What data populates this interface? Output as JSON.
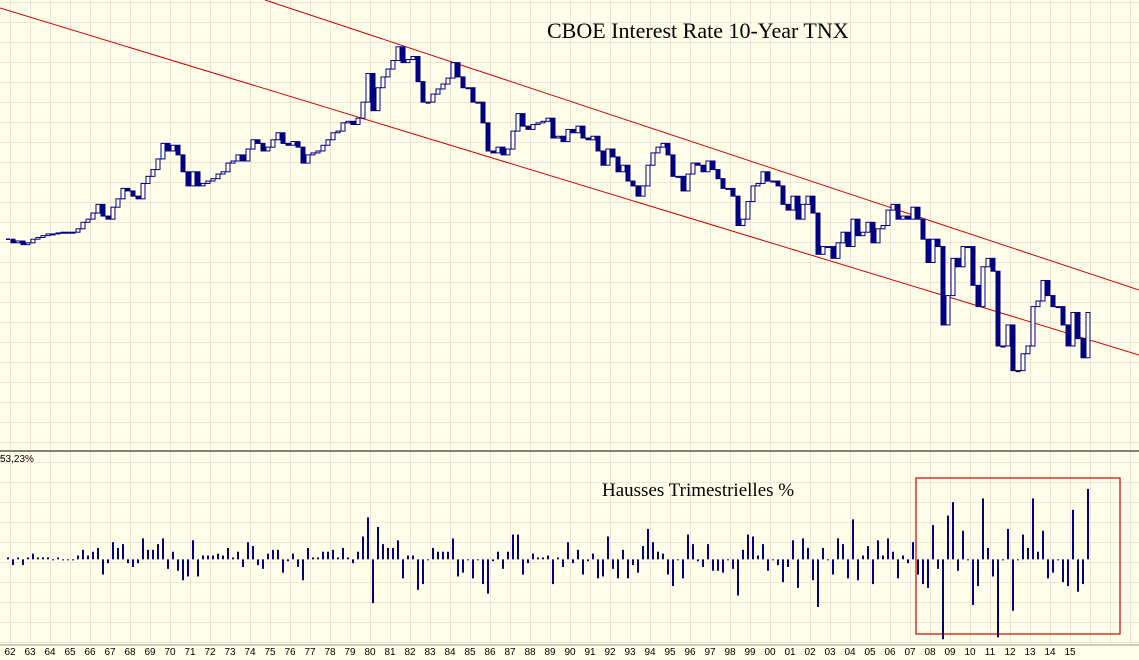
{
  "chart_data": [
    {
      "type": "candlestick",
      "title": "CBOE Interest Rate 10-Year TNX",
      "color": "#000080",
      "up_color": "#ffffff",
      "log_scale": true,
      "ylim": [
        0.92,
        21.2
      ],
      "values": [
        4.0,
        3.9,
        3.95,
        3.85,
        3.9,
        4.0,
        4.05,
        4.1,
        4.15,
        4.15,
        4.18,
        4.2,
        4.2,
        4.2,
        4.3,
        4.5,
        4.6,
        4.8,
        5.1,
        4.7,
        4.6,
        5.0,
        5.3,
        5.7,
        5.6,
        5.4,
        5.3,
        5.9,
        6.2,
        6.5,
        7.0,
        7.8,
        7.4,
        7.7,
        7.2,
        6.4,
        5.8,
        6.4,
        5.8,
        5.9,
        6.0,
        6.1,
        6.3,
        6.4,
        6.8,
        6.9,
        7.2,
        6.9,
        7.5,
        8.0,
        7.8,
        7.4,
        7.6,
        8.0,
        8.4,
        7.8,
        7.7,
        7.9,
        7.6,
        6.8,
        7.2,
        7.3,
        7.4,
        7.7,
        8.0,
        8.4,
        8.5,
        9.0,
        9.1,
        8.9,
        9.3,
        10.4,
        12.7,
        9.8,
        11.5,
        12.4,
        13.1,
        13.9,
        15.3,
        13.7,
        14.0,
        14.3,
        12.0,
        10.4,
        10.4,
        11.0,
        11.4,
        11.8,
        12.3,
        13.7,
        12.4,
        11.5,
        11.5,
        10.4,
        10.4,
        9.0,
        7.4,
        7.3,
        7.6,
        7.2,
        7.5,
        8.5,
        9.6,
        8.8,
        8.6,
        8.9,
        9.0,
        9.1,
        9.3,
        8.1,
        8.2,
        7.9,
        8.6,
        8.4,
        8.8,
        8.1,
        8.0,
        8.2,
        7.4,
        6.7,
        7.5,
        7.1,
        6.4,
        6.7,
        6.0,
        5.8,
        5.4,
        5.8,
        6.7,
        7.3,
        7.6,
        7.8,
        7.2,
        6.2,
        6.2,
        5.6,
        6.3,
        6.8,
        6.7,
        6.4,
        6.9,
        6.5,
        6.1,
        5.7,
        5.7,
        5.4,
        4.4,
        4.6,
        5.2,
        5.8,
        5.9,
        6.4,
        6.0,
        6.0,
        5.8,
        5.1,
        4.9,
        5.4,
        4.6,
        5.1,
        5.4,
        4.8,
        3.6,
        3.8,
        3.8,
        3.5,
        3.9,
        4.2,
        3.8,
        4.6,
        4.1,
        4.2,
        4.5,
        3.9,
        4.3,
        4.4,
        4.9,
        5.1,
        4.6,
        4.7,
        4.6,
        5.0,
        4.6,
        4.0,
        3.4,
        4.0,
        3.8,
        2.2,
        2.7,
        3.5,
        3.3,
        3.8,
        3.8,
        2.9,
        2.5,
        3.3,
        3.5,
        3.2,
        1.9,
        1.9,
        2.2,
        1.6,
        1.6,
        1.8,
        1.9,
        2.5,
        2.6,
        3.0,
        2.7,
        2.5,
        2.5,
        2.2,
        1.9,
        2.4,
        2.0,
        1.75,
        2.4
      ]
    },
    {
      "type": "bar",
      "title": "Hausses Trimestrielles %",
      "color": "#000080",
      "ylim": [
        -45,
        53.23
      ],
      "yticks": [
        {
          "value": 53.23,
          "label": "53,23%"
        }
      ],
      "categories": [
        "62",
        null,
        null,
        null,
        "63",
        null,
        null,
        null,
        "64",
        null,
        null,
        null,
        "65",
        null,
        null,
        null,
        "66",
        null,
        null,
        null,
        "67",
        null,
        null,
        null,
        "68",
        null,
        null,
        null,
        "69",
        null,
        null,
        null,
        "70",
        null,
        null,
        null,
        "71",
        null,
        null,
        null,
        "72",
        null,
        null,
        null,
        "73",
        null,
        null,
        null,
        "74",
        null,
        null,
        null,
        "75",
        null,
        null,
        null,
        "76",
        null,
        null,
        null,
        "77",
        null,
        null,
        null,
        "78",
        null,
        null,
        null,
        "79",
        null,
        null,
        null,
        "80",
        null,
        null,
        null,
        "81",
        null,
        null,
        null,
        "82",
        null,
        null,
        null,
        "83",
        null,
        null,
        null,
        "84",
        null,
        null,
        null,
        "85",
        null,
        null,
        null,
        "86",
        null,
        null,
        null,
        "87",
        null,
        null,
        null,
        "88",
        null,
        null,
        null,
        "89",
        null,
        null,
        null,
        "90",
        null,
        null,
        null,
        "91",
        null,
        null,
        null,
        "92",
        null,
        null,
        null,
        "93",
        null,
        null,
        null,
        "94",
        null,
        null,
        null,
        "95",
        null,
        null,
        null,
        "96",
        null,
        null,
        null,
        "97",
        null,
        null,
        null,
        "98",
        null,
        null,
        null,
        "99",
        null,
        null,
        null,
        "00",
        null,
        null,
        null,
        "01",
        null,
        null,
        null,
        "02",
        null,
        null,
        null,
        "03",
        null,
        null,
        null,
        "04",
        null,
        null,
        null,
        "05",
        null,
        null,
        null,
        "06",
        null,
        null,
        null,
        "07",
        null,
        null,
        null,
        "08",
        null,
        null,
        null,
        "09",
        null,
        null,
        null,
        "10",
        null,
        null,
        null,
        "11",
        null,
        null,
        null,
        "12",
        null,
        null,
        null,
        "13",
        null,
        null,
        null,
        "14",
        null,
        null,
        null,
        "15",
        null,
        null,
        null,
        null
      ],
      "values": [
        1,
        -3,
        1,
        -3,
        1,
        3,
        1,
        1,
        1,
        0,
        1,
        0,
        0,
        0,
        2,
        5,
        2,
        4,
        6,
        -8,
        -2,
        9,
        6,
        8,
        -2,
        -4,
        -2,
        11,
        5,
        5,
        8,
        11,
        -5,
        4,
        -6,
        -11,
        -9,
        10,
        -9,
        2,
        2,
        2,
        3,
        2,
        6,
        1,
        4,
        -4,
        9,
        7,
        -3,
        -5,
        3,
        5,
        5,
        -7,
        -1,
        3,
        -4,
        -11,
        6,
        1,
        1,
        4,
        4,
        5,
        1,
        6,
        1,
        -2,
        4,
        12,
        22,
        -23,
        17,
        8,
        6,
        6,
        10,
        -10,
        2,
        2,
        -16,
        -13,
        0,
        6,
        4,
        4,
        4,
        11,
        -9,
        -7,
        0,
        -10,
        0,
        -13,
        -18,
        -1,
        4,
        -5,
        4,
        13,
        13,
        -8,
        -2,
        3,
        1,
        1,
        2,
        -13,
        1,
        -4,
        9,
        -2,
        5,
        -8,
        -1,
        3,
        -10,
        -9,
        12,
        -5,
        -10,
        5,
        -10,
        -3,
        -7,
        7,
        16,
        9,
        4,
        3,
        -8,
        -14,
        0,
        -10,
        13,
        8,
        -1,
        -4,
        8,
        -6,
        -6,
        -7,
        0,
        -5,
        -19,
        5,
        13,
        12,
        2,
        8,
        -6,
        0,
        -3,
        -12,
        -4,
        10,
        -15,
        11,
        6,
        -11,
        -25,
        6,
        0,
        -8,
        11,
        8,
        -10,
        21,
        -11,
        2,
        7,
        -13,
        10,
        2,
        11,
        4,
        -10,
        2,
        -2,
        9,
        -8,
        -13,
        -15,
        18,
        -5,
        -42,
        23,
        30,
        -6,
        15,
        0,
        -24,
        -14,
        32,
        6,
        -9,
        -41,
        0,
        16,
        -27,
        0,
        13,
        6,
        32,
        4,
        15,
        -10,
        -7,
        0,
        -12,
        -14,
        26,
        -17,
        -13,
        37
      ]
    }
  ]
}
